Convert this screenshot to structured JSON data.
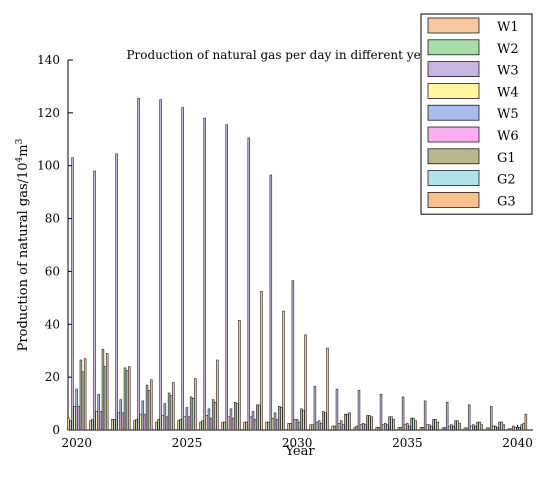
{
  "chart_data": {
    "type": "bar",
    "title": "Production of natural gas per day in different year",
    "xlabel": "Year",
    "ylabel": "Production of natural gas/10",
    "ylabel_sup1": "4",
    "ylabel_mid": "m",
    "ylabel_sup2": "3",
    "xlim": [
      2019.6,
      2040.7
    ],
    "ylim": [
      0,
      140
    ],
    "xticks": [
      "2020",
      "2025",
      "2030",
      "2035",
      "2040"
    ],
    "yticks": [
      "0",
      "20",
      "40",
      "60",
      "80",
      "100",
      "120",
      "140"
    ],
    "legend_position": "top-right",
    "years": [
      2020,
      2021,
      2022,
      2023,
      2024,
      2025,
      2026,
      2027,
      2028,
      2029,
      2030,
      2031,
      2032,
      2033,
      2034,
      2035,
      2036,
      2037,
      2038,
      2039,
      2040
    ],
    "series": [
      {
        "name": "W1",
        "color": "#f8c8a0",
        "values": [
          4.5,
          3.5,
          4.0,
          3.5,
          3.0,
          3.5,
          3.0,
          3.0,
          3.0,
          3.0,
          2.5,
          2.0,
          1.5,
          1.0,
          1.0,
          1.0,
          1.0,
          0.8,
          0.8,
          0.8,
          0.5
        ]
      },
      {
        "name": "W2",
        "color": "#a8dca8",
        "values": [
          3.5,
          4.0,
          4.0,
          4.0,
          4.0,
          4.0,
          3.5,
          3.0,
          3.0,
          3.0,
          2.5,
          2.0,
          1.5,
          1.5,
          1.0,
          1.0,
          1.0,
          1.0,
          0.8,
          0.8,
          0.5
        ]
      },
      {
        "name": "W3",
        "color": "#c8b4e0",
        "values": [
          103,
          98,
          104.5,
          125.5,
          125,
          122,
          118,
          115.5,
          110.5,
          96.5,
          56.5,
          16.5,
          15.5,
          15,
          13.5,
          12.5,
          11,
          10.5,
          9.5,
          9.0,
          1.5
        ]
      },
      {
        "name": "W4",
        "color": "#fff6a0",
        "values": [
          9.0,
          7.0,
          6.5,
          6.0,
          5.5,
          5.0,
          5.5,
          5.0,
          5.0,
          4.5,
          4.0,
          3.0,
          2.5,
          2.0,
          2.0,
          2.0,
          2.0,
          1.5,
          1.5,
          1.5,
          1.0
        ]
      },
      {
        "name": "W5",
        "color": "#a8bcf0",
        "values": [
          15.5,
          13.5,
          11.5,
          11.0,
          10.0,
          8.5,
          8.0,
          8.0,
          7.0,
          6.5,
          4.0,
          3.5,
          3.5,
          2.5,
          2.5,
          2.5,
          2.0,
          2.0,
          2.0,
          1.5,
          1.0
        ]
      },
      {
        "name": "W6",
        "color": "#f8b0f0",
        "values": [
          9.0,
          7.0,
          6.5,
          6.0,
          5.0,
          5.0,
          4.5,
          4.5,
          4.0,
          4.0,
          3.0,
          2.5,
          2.0,
          2.0,
          2.0,
          1.5,
          1.5,
          1.5,
          1.5,
          1.0,
          1.0
        ]
      },
      {
        "name": "G1",
        "color": "#b8b890",
        "values": [
          26.5,
          30.5,
          23.5,
          17.0,
          14.0,
          12.5,
          11.5,
          10.5,
          9.5,
          9.0,
          8.0,
          7.0,
          6.0,
          5.5,
          5.0,
          4.5,
          4.0,
          3.5,
          3.0,
          3.0,
          2.0
        ]
      },
      {
        "name": "G2",
        "color": "#b0e4ec",
        "values": [
          22.0,
          24.0,
          22.5,
          15.0,
          13.0,
          12.0,
          10.5,
          10.0,
          9.5,
          8.5,
          7.5,
          6.5,
          6.0,
          5.5,
          5.0,
          4.5,
          4.0,
          3.5,
          3.0,
          3.0,
          2.5
        ]
      },
      {
        "name": "G3",
        "color": "#f8c08c",
        "values": [
          27.0,
          29.0,
          24.0,
          19.0,
          18.0,
          19.5,
          26.5,
          41.5,
          52.5,
          45.0,
          36.0,
          31.0,
          6.5,
          5.0,
          4.0,
          3.5,
          3.0,
          2.5,
          2.0,
          2.0,
          6.0
        ]
      }
    ]
  }
}
